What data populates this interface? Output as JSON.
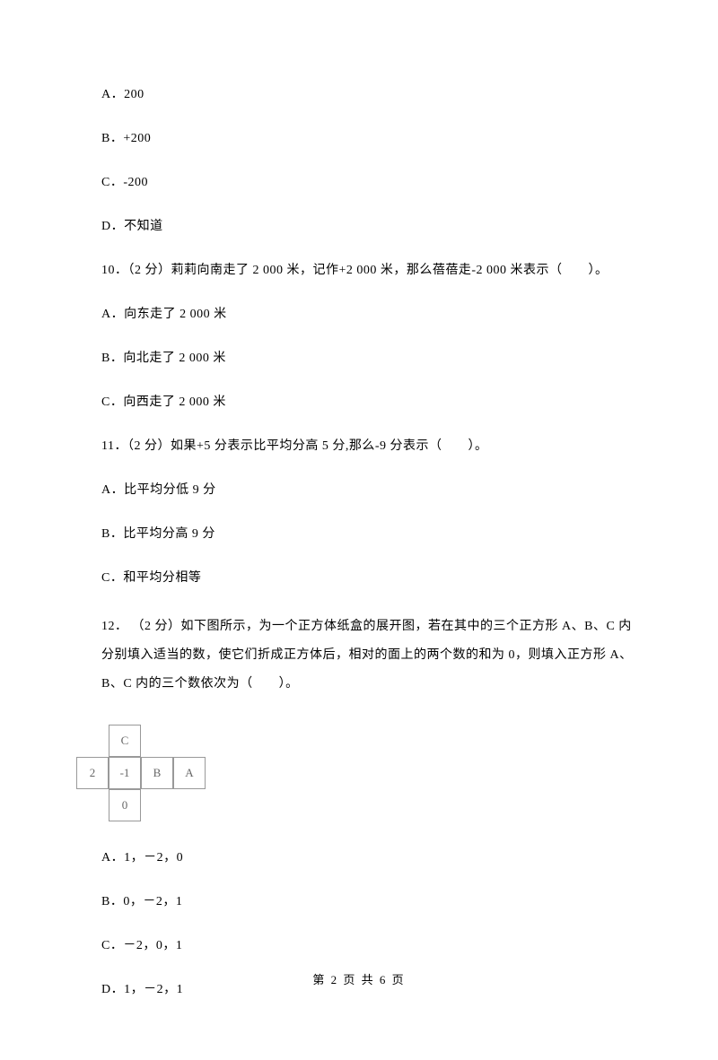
{
  "q9": {
    "optA": "A．200",
    "optB": "B．+200",
    "optC": "C．-200",
    "optD": "D．不知道"
  },
  "q10": {
    "stem": "10．（2 分）莉莉向南走了 2 000 米，记作+2 000 米，那么蓓蓓走-2 000 米表示（　　）。",
    "optA": "A．向东走了 2 000 米",
    "optB": "B．向北走了 2 000 米",
    "optC": "C．向西走了 2 000 米"
  },
  "q11": {
    "stem": "11．（2 分）如果+5 分表示比平均分高 5 分,那么-9 分表示（　　）。",
    "optA": "A．比平均分低 9 分",
    "optB": "B．比平均分高 9 分",
    "optC": "C．和平均分相等"
  },
  "q12": {
    "stem": "12． （2 分）如下图所示，为一个正方体纸盒的展开图，若在其中的三个正方形 A、B、C 内分别填入适当的数，使它们折成正方体后，相对的面上的两个数的和为 0，则填入正方形 A、B、C 内的三个数依次为（　　）。",
    "optA": "A．1，－2，0",
    "optB": "B．0，－2，1",
    "optC": "C．－2，0，1",
    "optD": "D．1，－2，1"
  },
  "diagram": {
    "cells": {
      "c": "C",
      "two": "2",
      "neg1": "-1",
      "b": "B",
      "a": "A",
      "zero": "0"
    }
  },
  "footer": "第 2 页 共 6 页"
}
